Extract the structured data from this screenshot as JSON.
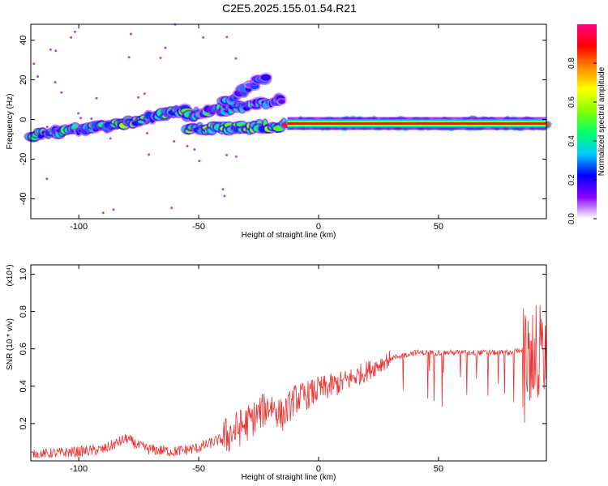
{
  "title": "C2E5.2025.155.01.54.R21",
  "chart_data": [
    {
      "type": "heatmap",
      "name": "spectrogram",
      "xlabel": "Height of straight line (km)",
      "ylabel": "Frequency (Hz)",
      "xlim": [
        -120,
        95
      ],
      "ylim": [
        -50,
        48
      ],
      "xticks": [
        "-100",
        "-50",
        "0",
        "50"
      ],
      "yticks": [
        "-40",
        "-20",
        "0",
        "20",
        "40"
      ],
      "xtick_values": [
        -100,
        -50,
        0,
        50
      ],
      "ytick_values": [
        -40,
        -20,
        0,
        20,
        40
      ],
      "grid": false,
      "colorbar": {
        "label": "Normalized spectral amplitude",
        "range": [
          0,
          1
        ],
        "ticks": [
          "0.0",
          "0.2",
          "0.4",
          "0.6",
          "0.8"
        ],
        "tick_values": [
          0,
          0.2,
          0.4,
          0.6,
          0.8
        ],
        "colormap": [
          "#ffffff",
          "#8800ff",
          "#0000ff",
          "#00ccff",
          "#00ff66",
          "#88ff00",
          "#ffff00",
          "#ff8800",
          "#ff0000",
          "#ff0088"
        ]
      },
      "bands": [
        {
          "x_start": -120,
          "x_end": -85,
          "freq_start": -8,
          "freq_end": -3,
          "amplitude": 0.35
        },
        {
          "x_start": -85,
          "x_end": -55,
          "freq_start": -3,
          "freq_end": 5,
          "amplitude": 0.4
        },
        {
          "x_start": -55,
          "x_end": -15,
          "freq_start": 2,
          "freq_end": 10,
          "amplitude": 0.3
        },
        {
          "x_start": -40,
          "x_end": -22,
          "freq_start": 8,
          "freq_end": 22,
          "amplitude": 0.25
        },
        {
          "x_start": -55,
          "x_end": -15,
          "freq_start": -5,
          "freq_end": -3,
          "amplitude": 0.4
        },
        {
          "x_start": -13,
          "x_end": 95,
          "freq_start": -2,
          "freq_end": -2,
          "amplitude": 0.95
        }
      ]
    },
    {
      "type": "line",
      "name": "snr",
      "xlabel": "Height of straight line (km)",
      "ylabel": "SNR (10 * v/v)",
      "y_multiplier": "(x10⁴)",
      "xlim": [
        -120,
        95
      ],
      "ylim": [
        0.0,
        1.05
      ],
      "xticks": [
        "-100",
        "-50",
        "0",
        "50"
      ],
      "yticks": [
        "0.2",
        "0.4",
        "0.6",
        "0.8",
        "1.0"
      ],
      "xtick_values": [
        -100,
        -50,
        0,
        50
      ],
      "ytick_values": [
        0.2,
        0.4,
        0.6,
        0.8,
        1.0
      ],
      "grid": false,
      "color": "#ee3333",
      "series": [
        {
          "x": [
            -120,
            -110,
            -100,
            -90,
            -80,
            -75,
            -70,
            -60,
            -50,
            -40,
            -30,
            -20,
            -15,
            -10,
            -5,
            0,
            10,
            20,
            30,
            40,
            50,
            60,
            70,
            80,
            85,
            88,
            90,
            92,
            95
          ],
          "values": [
            0.03,
            0.04,
            0.05,
            0.06,
            0.12,
            0.08,
            0.06,
            0.05,
            0.07,
            0.12,
            0.2,
            0.3,
            0.24,
            0.33,
            0.35,
            0.38,
            0.42,
            0.48,
            0.55,
            0.58,
            0.58,
            0.58,
            0.58,
            0.58,
            0.6,
            0.5,
            0.6,
            0.6,
            0.55
          ]
        }
      ]
    }
  ]
}
